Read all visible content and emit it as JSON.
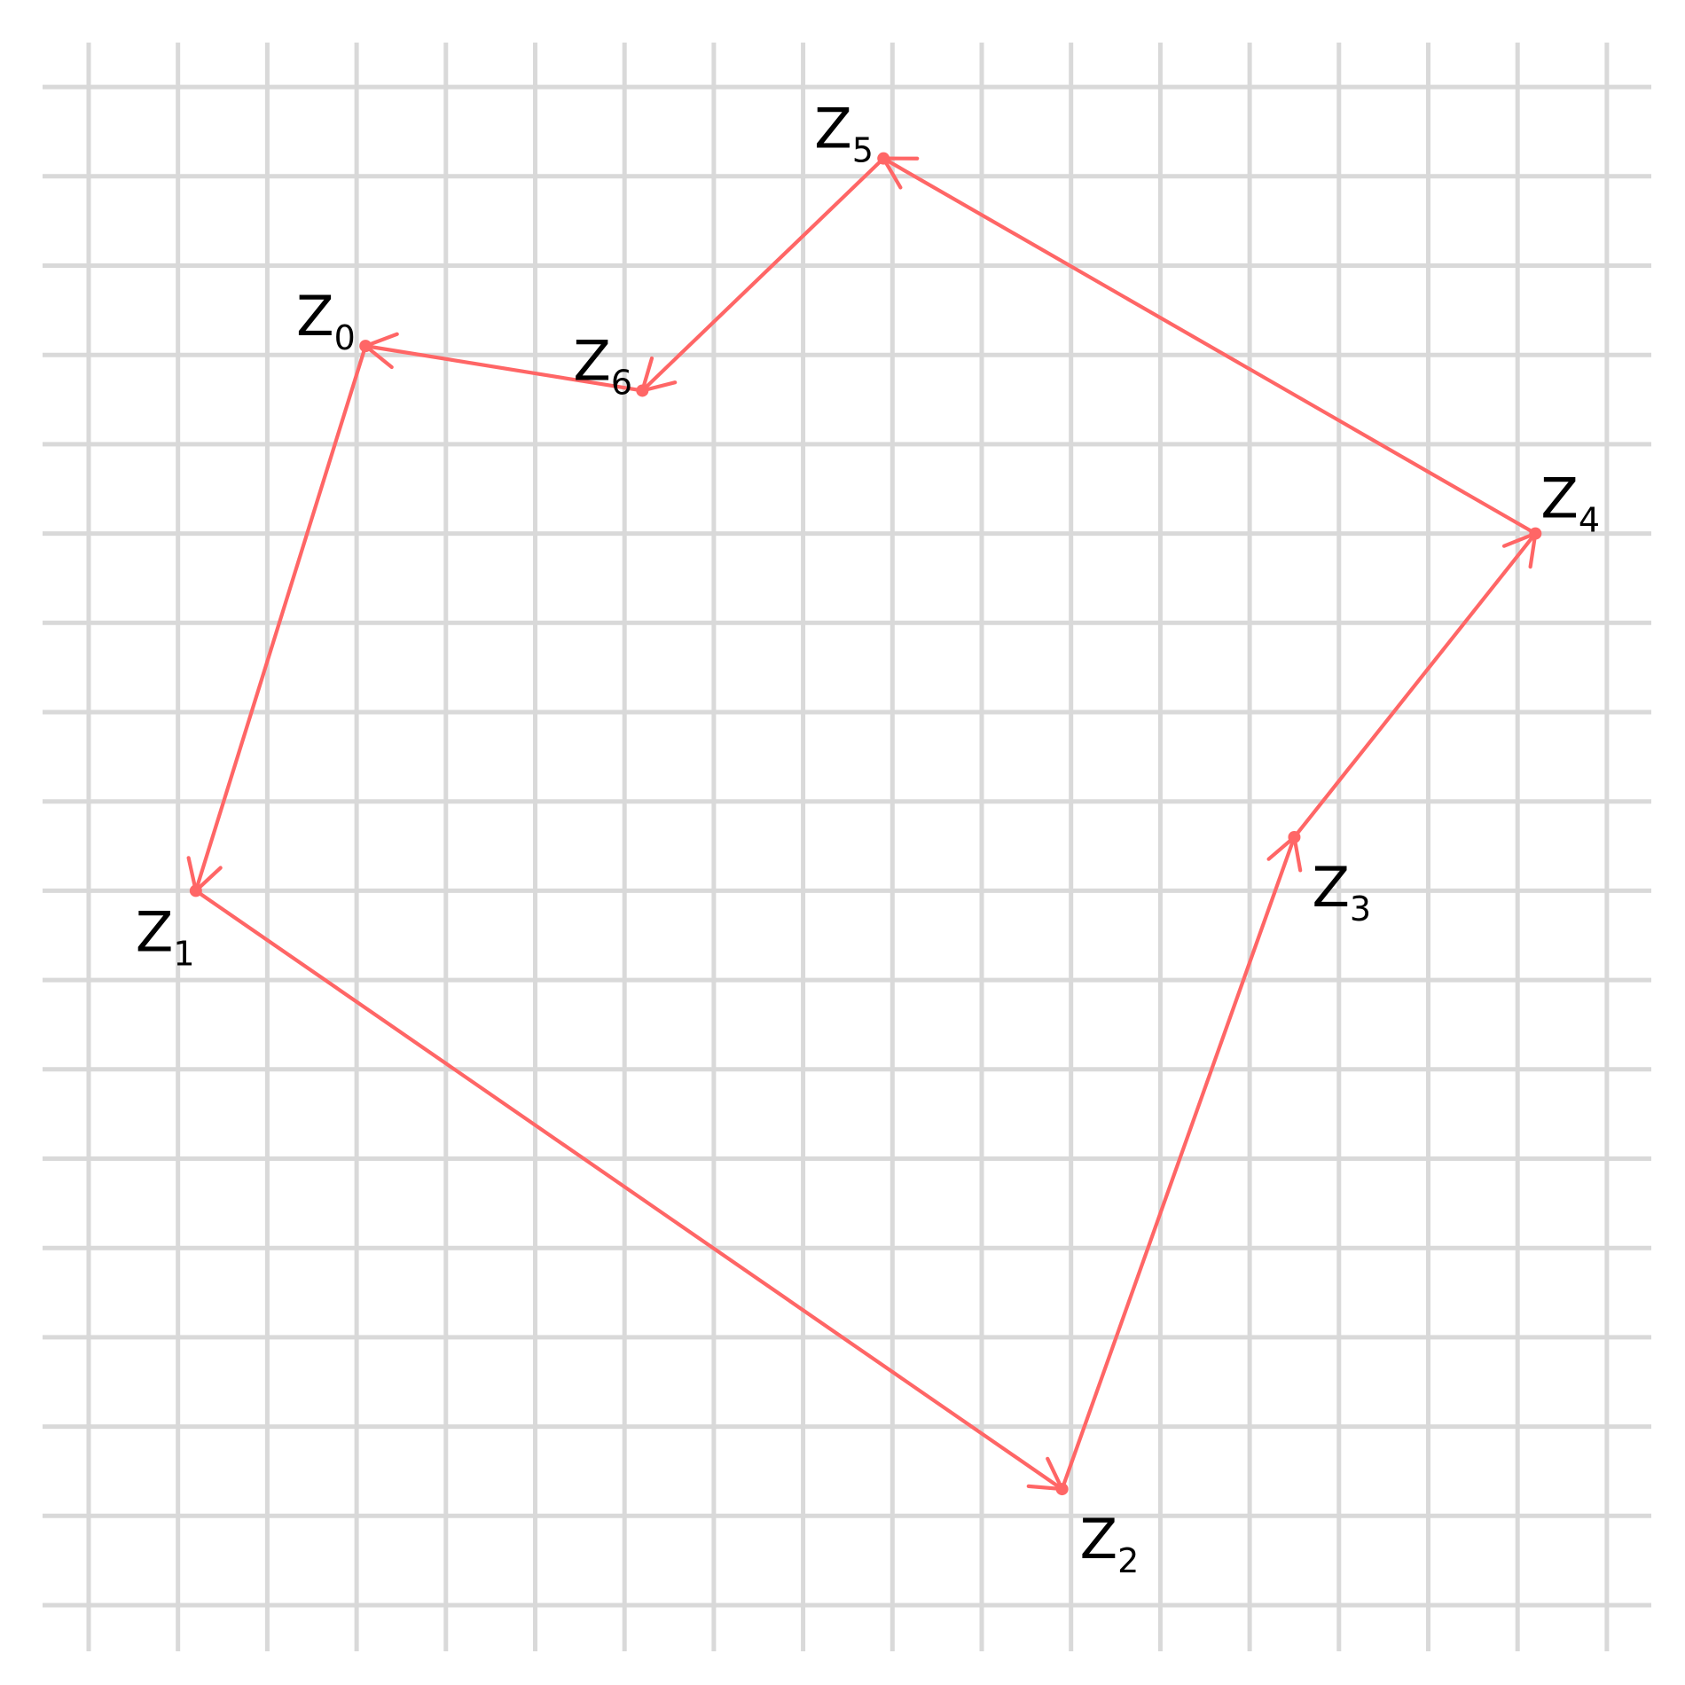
{
  "diagram": {
    "colors": {
      "edge": "#ff6666",
      "grid": "#d9d9d9",
      "label": "#000000",
      "background": "#ffffff"
    },
    "points": [
      {
        "id": "Z0",
        "base": "Z",
        "sub": "0",
        "x": 3.1,
        "y": 14.1,
        "label_pos": "upper-left"
      },
      {
        "id": "Z1",
        "base": "Z",
        "sub": "1",
        "x": 1.2,
        "y": 8.0,
        "label_pos": "lower-left"
      },
      {
        "id": "Z2",
        "base": "Z",
        "sub": "2",
        "x": 10.9,
        "y": 1.3,
        "label_pos": "lower-right"
      },
      {
        "id": "Z3",
        "base": "Z",
        "sub": "3",
        "x": 13.5,
        "y": 8.6,
        "label_pos": "lower-right"
      },
      {
        "id": "Z4",
        "base": "Z",
        "sub": "4",
        "x": 16.2,
        "y": 12.0,
        "label_pos": "upper-right"
      },
      {
        "id": "Z5",
        "base": "Z",
        "sub": "5",
        "x": 8.9,
        "y": 16.2,
        "label_pos": "upper-left"
      },
      {
        "id": "Z6",
        "base": "Z",
        "sub": "6",
        "x": 6.2,
        "y": 13.6,
        "label_pos": "upper-left"
      }
    ],
    "edges": [
      {
        "from": "Z0",
        "to": "Z1"
      },
      {
        "from": "Z1",
        "to": "Z2"
      },
      {
        "from": "Z2",
        "to": "Z3"
      },
      {
        "from": "Z3",
        "to": "Z4"
      },
      {
        "from": "Z4",
        "to": "Z5"
      },
      {
        "from": "Z5",
        "to": "Z6"
      },
      {
        "from": "Z6",
        "to": "Z0"
      }
    ],
    "grid": {
      "x_range": [
        0,
        17
      ],
      "y_range": [
        0,
        17
      ],
      "step": 1
    }
  }
}
